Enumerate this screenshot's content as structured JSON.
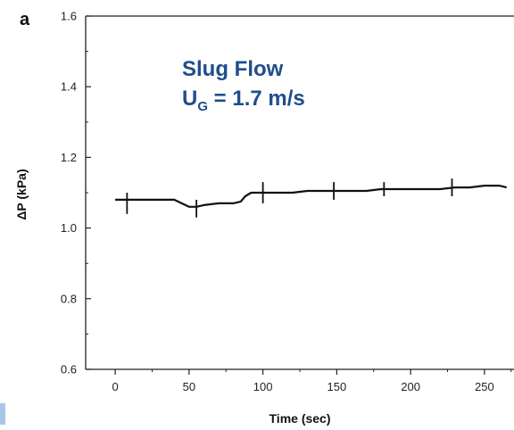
{
  "chart_data": {
    "type": "line",
    "panel_label": "a",
    "xlabel": "Time (sec)",
    "ylabel": "ΔP (kPa)",
    "xlim": [
      -20,
      270
    ],
    "ylim": [
      0.6,
      1.6
    ],
    "xticks": [
      0,
      50,
      100,
      150,
      200,
      250
    ],
    "yticks": [
      0.6,
      0.8,
      1.0,
      1.2,
      1.4,
      1.6
    ],
    "ytick_labels": [
      "0.6",
      "0.8",
      "1.0",
      "1.2",
      "1.4",
      "1.6"
    ],
    "grid": false,
    "line_color": "#111111",
    "annotation": {
      "line1": "Slug Flow",
      "line2_main": "U",
      "line2_sub": "G",
      "line2_rest": " = 1.7 m/s",
      "color": "#1f4e8c"
    },
    "series": [
      {
        "x": [
          0,
          10,
          20,
          30,
          40,
          45,
          50,
          55,
          60,
          70,
          80,
          85,
          88,
          92,
          100,
          110,
          120,
          130,
          140,
          150,
          160,
          170,
          180,
          190,
          200,
          210,
          220,
          230,
          240,
          250,
          260,
          265
        ],
        "y": [
          1.08,
          1.08,
          1.08,
          1.08,
          1.08,
          1.07,
          1.06,
          1.06,
          1.065,
          1.07,
          1.07,
          1.075,
          1.09,
          1.1,
          1.1,
          1.1,
          1.1,
          1.105,
          1.105,
          1.105,
          1.105,
          1.105,
          1.11,
          1.11,
          1.11,
          1.11,
          1.11,
          1.115,
          1.115,
          1.12,
          1.12,
          1.115
        ]
      }
    ],
    "spikes": [
      {
        "x": 8,
        "low": 1.04,
        "high": 1.1
      },
      {
        "x": 55,
        "low": 1.03,
        "high": 1.08
      },
      {
        "x": 100,
        "low": 1.07,
        "high": 1.13
      },
      {
        "x": 148,
        "low": 1.08,
        "high": 1.13
      },
      {
        "x": 182,
        "low": 1.09,
        "high": 1.13
      },
      {
        "x": 228,
        "low": 1.09,
        "high": 1.14
      }
    ]
  },
  "decor": {
    "side_marker_color": "#a9c6e8"
  }
}
